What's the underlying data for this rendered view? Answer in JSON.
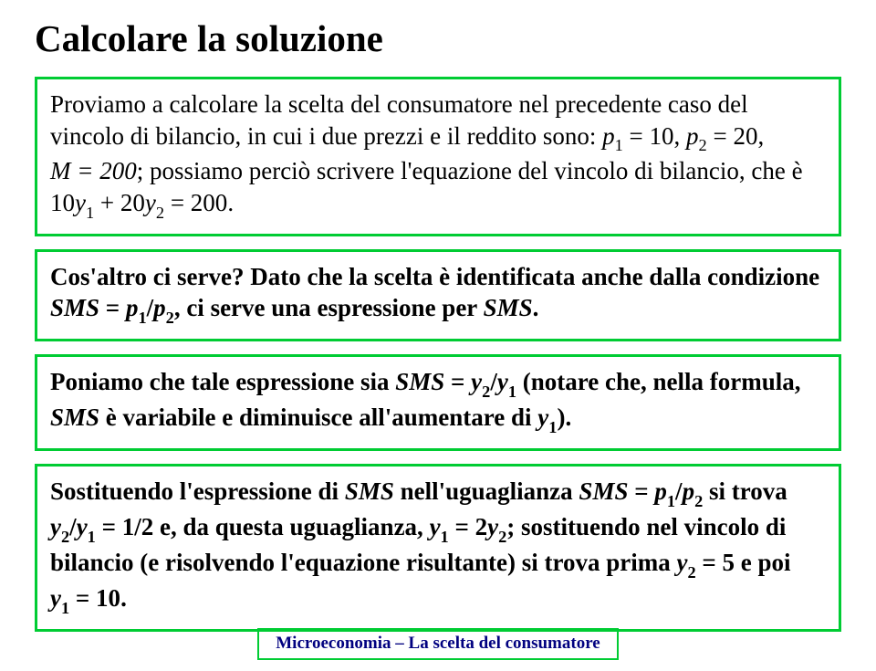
{
  "colors": {
    "box_border": "#00cc33",
    "footer_text": "#010180",
    "text": "#000000",
    "background": "#ffffff"
  },
  "title": "Calcolare la soluzione",
  "box1": {
    "lead": "Proviamo a calcolare la scelta del consumatore nel precedente caso del vincolo di bilancio, in cui i due prezzi e il reddito sono: ",
    "eq_p1_lhs": "p",
    "eq_p1_rhs": " = 10, ",
    "eq_p2_lhs": "p",
    "eq_p2_rhs": " = 20, ",
    "eq_M": "M = 200",
    "mid": "; possiamo perciò scrivere l'equazione del vincolo di bilancio, che è ",
    "eq_budget_a": "10",
    "eq_budget_b": " + 20",
    "eq_budget_c": " = 200",
    "tail": "."
  },
  "box2": {
    "q": "Cos'altro ci serve? ",
    "t1": "Dato che la scelta è identificata anche dalla condizione ",
    "sms": "SMS",
    "eq": " = ",
    "slash": "/",
    "t2": ", ci serve una espressione per ",
    "tail": "."
  },
  "box3": {
    "t1": "Poniamo che tale espressione sia ",
    "sms": "SMS",
    "eq": " = ",
    "slash": "/",
    "t2": " (notare che, nella formula, ",
    "t3": " è variabile e diminuisce all'aumentare di ",
    "tail": ")."
  },
  "box4": {
    "t1": "Sostituendo l'espressione di ",
    "sms": "SMS",
    "t2": " nell'uguaglianza ",
    "eq": " = ",
    "slash": "/",
    "t3": " si trova ",
    "half": " = 1/2",
    "t4": " e, da questa uguaglianza,  ",
    "eqy": " = 2",
    "t5": "; sostituendo nel vincolo di bilancio (e risolvendo l'equazione risultante) si trova prima ",
    "y2val": " = 5",
    "t6": " e poi ",
    "y1val": " = 10",
    "tail": "."
  },
  "subs": {
    "one": "1",
    "two": "2"
  },
  "vars": {
    "p": "p",
    "y": "y"
  },
  "footer": {
    "a": "Microeconomia",
    "sep": " – ",
    "b": "La scelta del consumatore"
  }
}
